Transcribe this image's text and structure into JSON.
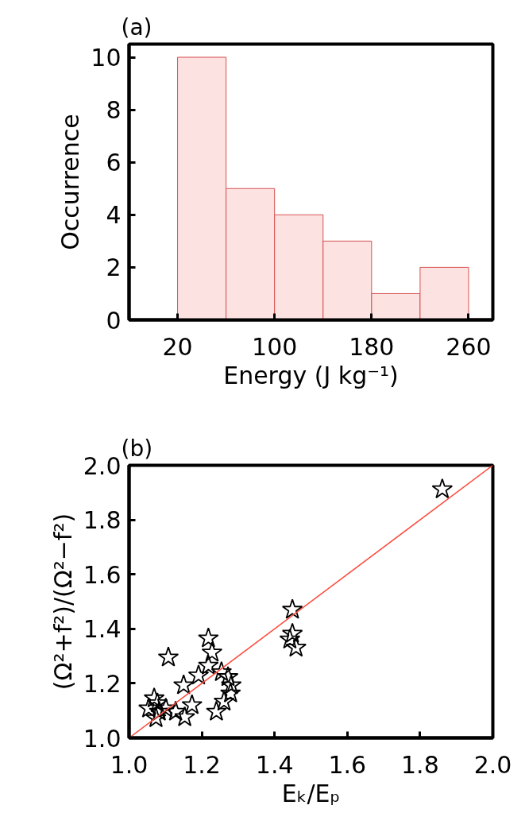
{
  "chart_data": [
    {
      "type": "histogram",
      "title": "(a)",
      "xlabel": "Energy (J kg⁻¹)",
      "ylabel": "Occurrence",
      "bins": [
        20,
        60,
        100,
        140,
        180,
        220,
        260
      ],
      "values": [
        10,
        5,
        4,
        3,
        1,
        2
      ],
      "color": "#fde2e2",
      "xlim": [
        -20,
        280
      ],
      "xticks": [
        20,
        100,
        180,
        260
      ],
      "ylim": [
        0,
        10.5
      ],
      "yticks": [
        0,
        2,
        4,
        6,
        8,
        10
      ]
    },
    {
      "type": "scatter",
      "title": "(b)",
      "xlabel": "Eₖ/Eₚ",
      "ylabel": "(Ω²+f²)/(Ω²−f²)",
      "xlim": [
        1.0,
        2.0
      ],
      "xticks": [
        {
          "value": 1.0,
          "label": "1.0"
        },
        1.2,
        1.4,
        1.6,
        1.8,
        {
          "value": 2.0,
          "label": "2.0"
        }
      ],
      "ylim": [
        1.0,
        2.0
      ],
      "yticks": [
        {
          "value": 1.0,
          "label": "1.0"
        },
        1.2,
        1.4,
        1.6,
        1.8,
        {
          "value": 2.0,
          "label": "2.0"
        }
      ],
      "series": [
        {
          "type": "scatter",
          "color": "#000000",
          "marker": "star",
          "x": [
            1.861,
            1.449,
            1.449,
            1.442,
            1.459,
            1.108,
            1.218,
            1.228,
            1.218,
            1.191,
            1.15,
            1.254,
            1.272,
            1.281,
            1.279,
            1.261,
            1.24,
            1.173,
            1.153,
            1.128,
            1.101,
            1.078,
            1.069,
            1.054,
            1.074,
            1.083
          ],
          "values": [
            1.912,
            1.47,
            1.382,
            1.361,
            1.331,
            1.295,
            1.365,
            1.313,
            1.265,
            1.229,
            1.193,
            1.241,
            1.223,
            1.193,
            1.163,
            1.133,
            1.096,
            1.12,
            1.076,
            1.096,
            1.108,
            1.127,
            1.145,
            1.108,
            1.072,
            1.096
          ]
        },
        {
          "type": "line",
          "color": "#ff4a3a",
          "x": [
            1.0,
            2.0
          ],
          "values": [
            1.0,
            2.0
          ]
        }
      ]
    }
  ]
}
